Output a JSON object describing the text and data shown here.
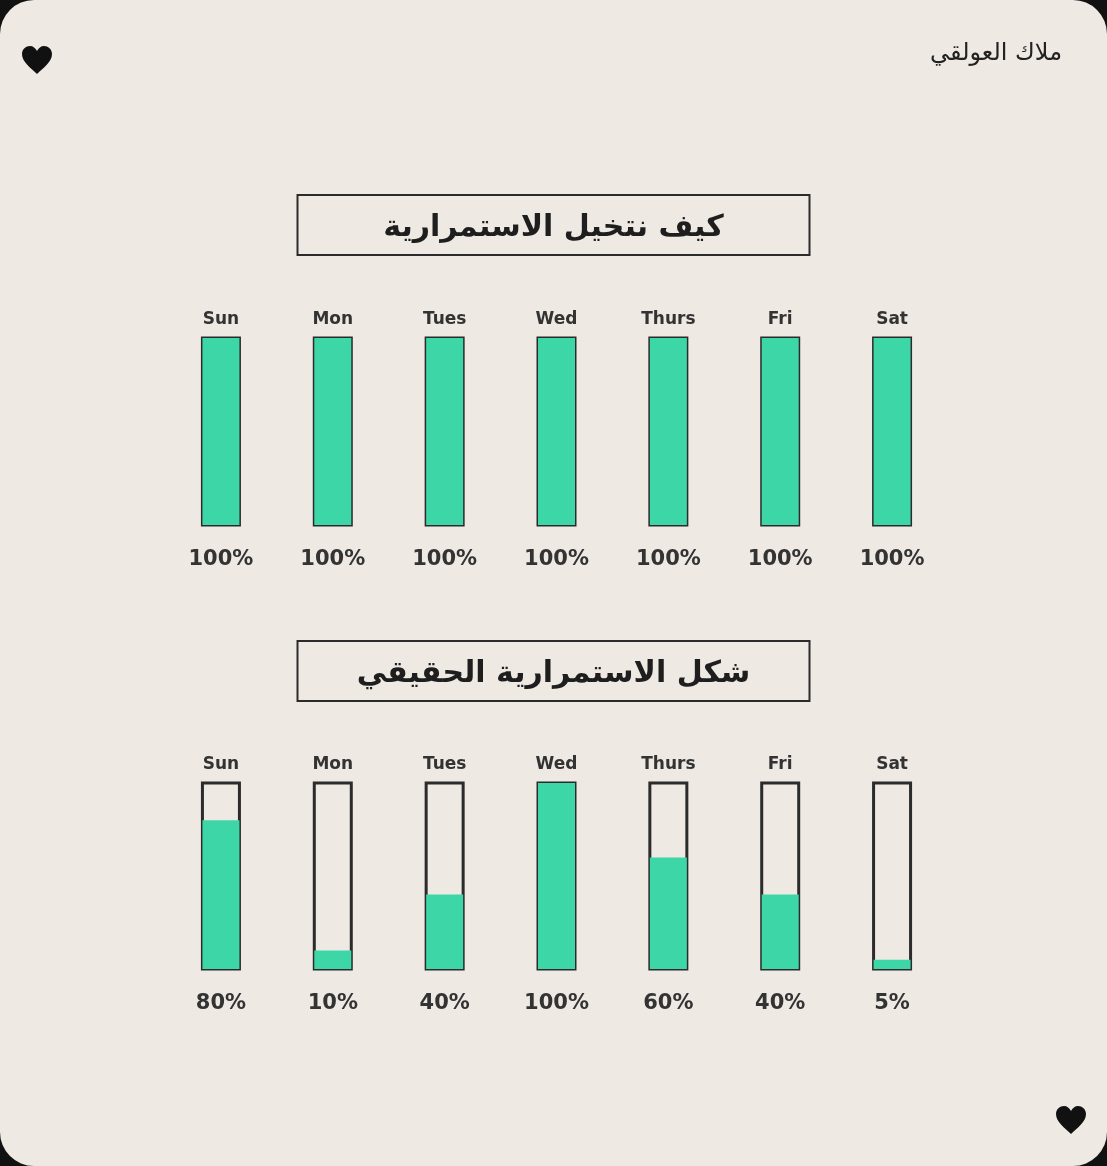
{
  "chart_data": [
    {
      "type": "bar",
      "title": "كيف نتخيل الاستمرارية",
      "categories": [
        "Sun",
        "Mon",
        "Tues",
        "Wed",
        "Thurs",
        "Fri",
        "Sat"
      ],
      "values": [
        100,
        100,
        100,
        100,
        100,
        100,
        100
      ],
      "value_labels": [
        "100%",
        "100%",
        "100%",
        "100%",
        "100%",
        "100%",
        "100%"
      ],
      "color": "#3dd6a6",
      "ylim": [
        0,
        100
      ],
      "tick_labels": "x",
      "annotations": [
        "ملاك العولقي"
      ]
    },
    {
      "type": "bar",
      "title": "شكل الاستمرارية الحقيقي",
      "categories": [
        "Sun",
        "Mon",
        "Tues",
        "Wed",
        "Thurs",
        "Fri",
        "Sat"
      ],
      "values": [
        80,
        10,
        40,
        100,
        60,
        40,
        5
      ],
      "value_labels": [
        "80%",
        "10%",
        "40%",
        "100%",
        "60%",
        "40%",
        "5%"
      ],
      "color": "#3dd6a6",
      "ylim": [
        0,
        100
      ],
      "tick_labels": "x"
    }
  ]
}
